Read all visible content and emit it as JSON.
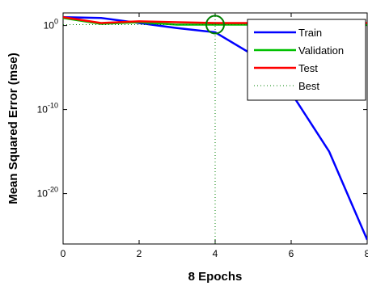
{
  "chart_data": {
    "type": "line",
    "title": "",
    "xlabel": "8 Epochs",
    "ylabel": "Mean Squared Error  (mse)",
    "xlim": [
      0,
      8
    ],
    "ylim_log10": [
      -26,
      1.5
    ],
    "yscale": "log",
    "grid": false,
    "legend_position": "top-right",
    "x_ticks": [
      {
        "value": 0,
        "label": "0"
      },
      {
        "value": 2,
        "label": "2"
      },
      {
        "value": 4,
        "label": "4"
      },
      {
        "value": 6,
        "label": "6"
      },
      {
        "value": 8,
        "label": "8"
      }
    ],
    "y_ticks": [
      {
        "value_log10": 0,
        "base": "10",
        "exp": "0"
      },
      {
        "value_log10": -10,
        "base": "10",
        "exp": "-10"
      },
      {
        "value_log10": -20,
        "base": "10",
        "exp": "-20"
      }
    ],
    "series": [
      {
        "name": "Train",
        "color": "#0000ff",
        "x": [
          0,
          1,
          2,
          3,
          4,
          5,
          6,
          7,
          8
        ],
        "log10_mse": [
          1.0,
          0.9,
          0.3,
          -0.3,
          -0.8,
          -3.5,
          -8.0,
          -15.0,
          -25.5
        ]
      },
      {
        "name": "Validation",
        "color": "#00c000",
        "x": [
          0,
          1,
          2,
          3,
          4,
          5,
          6,
          7,
          8
        ],
        "log10_mse": [
          0.9,
          0.2,
          0.4,
          0.1,
          0.1,
          0.1,
          0.1,
          0.1,
          0.1
        ]
      },
      {
        "name": "Test",
        "color": "#ff0000",
        "x": [
          0,
          1,
          2,
          3,
          4,
          5,
          6,
          7,
          8
        ],
        "log10_mse": [
          1.0,
          0.3,
          0.5,
          0.4,
          0.3,
          0.3,
          0.3,
          0.3,
          0.3
        ]
      }
    ],
    "best": {
      "name": "Best",
      "color": "#008000",
      "epoch": 4,
      "log10_mse": 0.1
    }
  }
}
